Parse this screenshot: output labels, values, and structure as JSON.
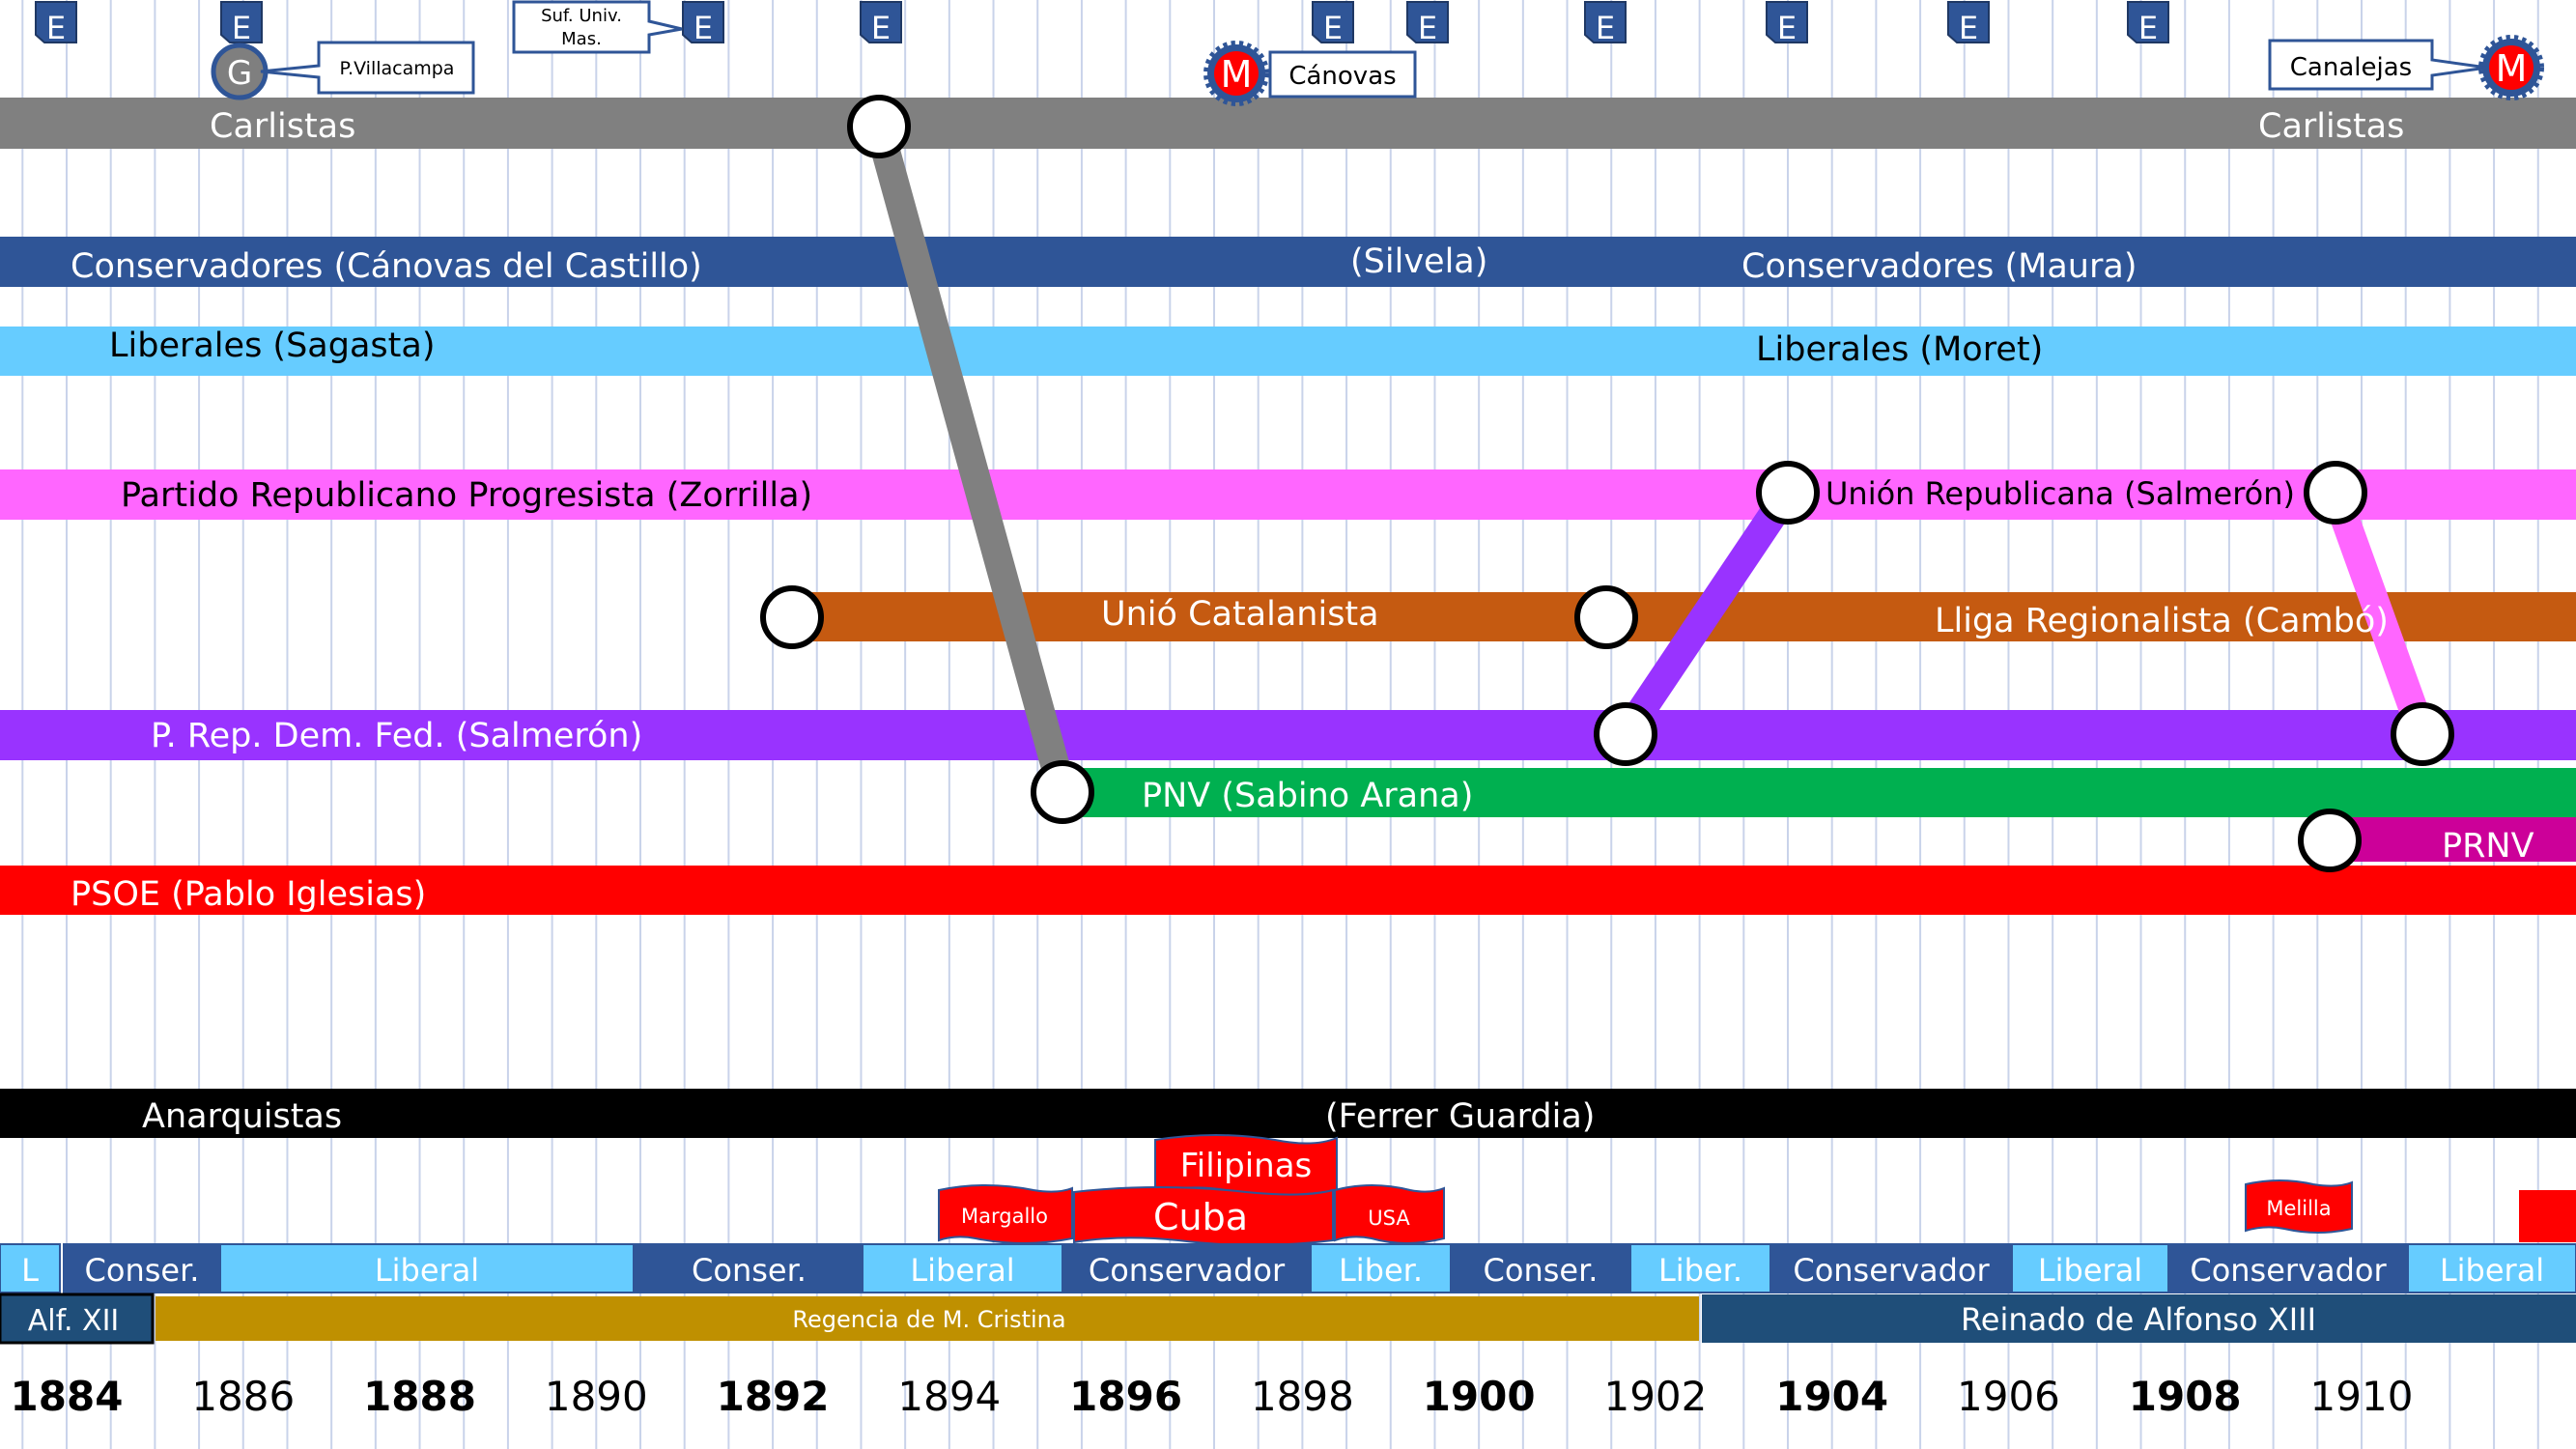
{
  "parties": [
    {
      "id": "carlistas",
      "labels": [
        "Carlistas",
        "Carlistas"
      ],
      "color": "#808080"
    },
    {
      "id": "conservadores",
      "labels": [
        "Conservadores (Cánovas del Castillo)",
        "(Silvela)",
        "Conservadores (Maura)"
      ],
      "color": "#2F5597"
    },
    {
      "id": "liberales",
      "labels": [
        "Liberales (Sagasta)",
        "Liberales (Moret)"
      ],
      "color": "#66CCFF"
    },
    {
      "id": "republicano-progresista",
      "labels": [
        "Partido Republicano Progresista (Zorrilla)",
        "Unión Republicana (Salmerón)"
      ],
      "color": "#FF66FF"
    },
    {
      "id": "catalanista",
      "labels": [
        "Unió Catalanista",
        "Lliga Regionalista (Cambó)"
      ],
      "color": "#C55A11"
    },
    {
      "id": "rep-dem-fed",
      "labels": [
        "P. Rep. Dem. Fed. (Salmerón)"
      ],
      "color": "#9933FF"
    },
    {
      "id": "pnv",
      "labels": [
        "PNV (Sabino Arana)",
        "PRNV"
      ],
      "color": "#00B050"
    },
    {
      "id": "psoe",
      "labels": [
        "PSOE (Pablo Iglesias)"
      ],
      "color": "#FF0000"
    },
    {
      "id": "anarquistas",
      "labels": [
        "Anarquistas",
        "(Ferrer Guardia)"
      ],
      "color": "#000000"
    }
  ],
  "election_marker": "E",
  "event_markers": {
    "g": "G",
    "m": "M"
  },
  "callouts": [
    "P.Villacampa",
    "Suf. Univ.",
    "Mas.",
    "Cánovas",
    "Canalejas"
  ],
  "conflicts": [
    "Filipinas",
    "Margallo",
    "Cuba",
    "USA",
    "Melilla"
  ],
  "governments": [
    "L",
    "Conser.",
    "Liberal",
    "Conser.",
    "Liberal",
    "Conservador",
    "Liber.",
    "Conser.",
    "Liber.",
    "Conservador",
    "Liberal",
    "Conservador",
    "Liberal"
  ],
  "reigns": [
    "Alf. XII",
    "Regencia de M. Cristina",
    "Reinado de Alfonso XIII"
  ],
  "years": [
    {
      "label": "1884",
      "bold": true
    },
    {
      "label": "1886",
      "bold": false
    },
    {
      "label": "1888",
      "bold": true
    },
    {
      "label": "1890",
      "bold": false
    },
    {
      "label": "1892",
      "bold": true
    },
    {
      "label": "1894",
      "bold": false
    },
    {
      "label": "1896",
      "bold": true
    },
    {
      "label": "1898",
      "bold": false
    },
    {
      "label": "1900",
      "bold": true
    },
    {
      "label": "1902",
      "bold": false
    },
    {
      "label": "1904",
      "bold": true
    },
    {
      "label": "1906",
      "bold": false
    },
    {
      "label": "1908",
      "bold": true
    },
    {
      "label": "1910",
      "bold": false
    }
  ],
  "colors": {
    "grid": "#C9D3EA",
    "election": "#2F5597",
    "government_dark": "#2F5597",
    "government_light": "#66CCFF",
    "regencia": "#BF9000",
    "alfonso": "#1F4E79",
    "conflict": "#FF0000"
  }
}
